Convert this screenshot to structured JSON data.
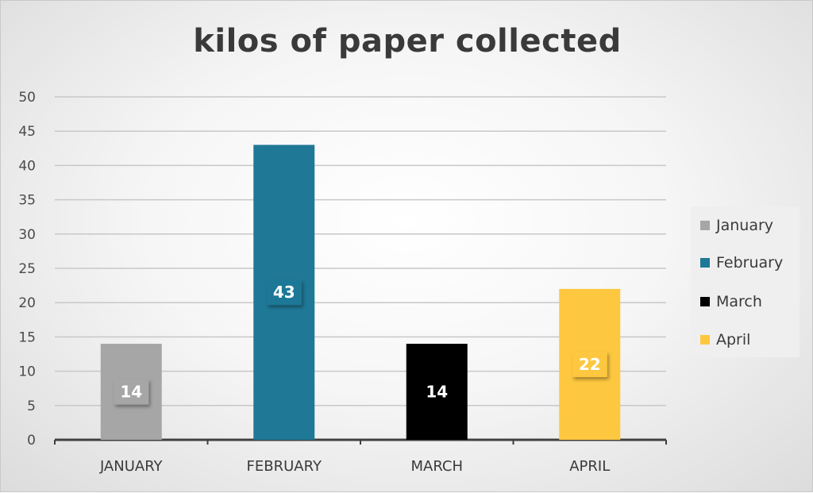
{
  "chart_data": {
    "type": "bar",
    "title": "kilos of paper collected",
    "categories": [
      "JANUARY",
      "FEBRUARY",
      "MARCH",
      "APRIL"
    ],
    "values": [
      14,
      43,
      14,
      22
    ],
    "colors": [
      "#a6a6a6",
      "#1f7896",
      "#000000",
      "#fdc740"
    ],
    "ylim": [
      0,
      50
    ],
    "yticks": [
      0,
      5,
      10,
      15,
      20,
      25,
      30,
      35,
      40,
      45,
      50
    ],
    "grid": true,
    "legend_position": "right",
    "legend": [
      "January",
      "February",
      "March",
      "April"
    ]
  }
}
